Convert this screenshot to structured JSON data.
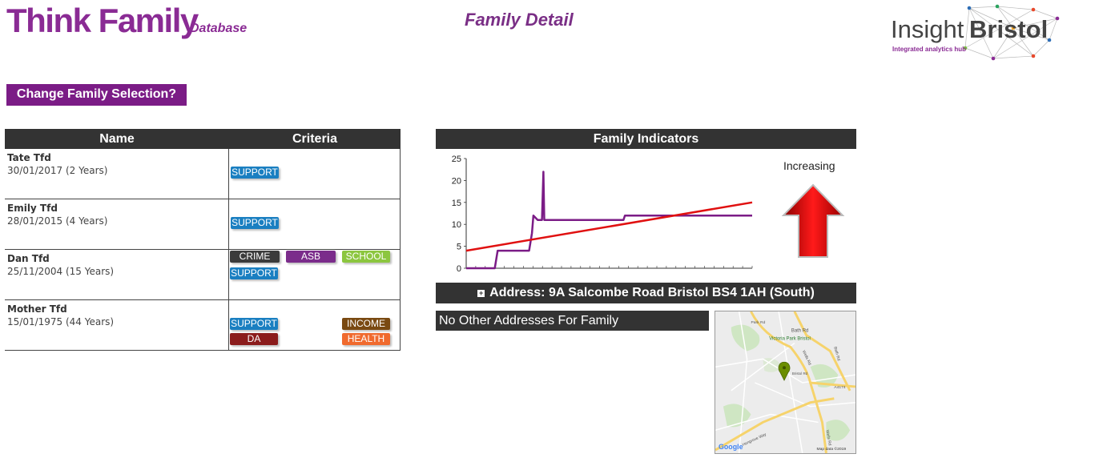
{
  "header": {
    "logo_main": "Think Family",
    "logo_sub": "Database",
    "page_title": "Family Detail",
    "partner_logo": {
      "word1": "Insight",
      "word2": "Bristol",
      "tagline": "Integrated analytics hub"
    }
  },
  "change_button": "Change Family Selection?",
  "people_table": {
    "headers": {
      "name": "Name",
      "criteria": "Criteria"
    },
    "rows": [
      {
        "name": "Tate Tfd",
        "dob": "30/01/2017 (2 Years)",
        "tags": [
          {
            "label": "SUPPORT",
            "color": "#1a7fc1"
          }
        ]
      },
      {
        "name": "Emily Tfd",
        "dob": "28/01/2015 (4 Years)",
        "tags": [
          {
            "label": "SUPPORT",
            "color": "#1a7fc1"
          }
        ]
      },
      {
        "name": "Dan Tfd",
        "dob": "25/11/2004 (15 Years)",
        "tags": [
          {
            "label": "CRIME",
            "color": "#3b3b3b"
          },
          {
            "label": "ASB",
            "color": "#7b2c8b"
          },
          {
            "label": "SCHOOL",
            "color": "#8cc63f"
          },
          {
            "label": "SUPPORT",
            "color": "#1a7fc1"
          }
        ]
      },
      {
        "name": "Mother Tfd",
        "dob": "15/01/1975 (44 Years)",
        "tags": [
          {
            "label": "SUPPORT",
            "color": "#1a7fc1"
          },
          {
            "label": "INCOME",
            "color": "#7a4a12"
          },
          {
            "label": "DA",
            "color": "#8b1c1c"
          },
          {
            "label": "HEALTH",
            "color": "#f06a2e"
          }
        ]
      }
    ]
  },
  "family_indicators": {
    "title": "Family Indicators",
    "trend_label": "Increasing",
    "trend_arrow_color": "#d40000"
  },
  "chart_data": {
    "type": "line",
    "ylim": [
      0,
      25
    ],
    "yticks": [
      0,
      5,
      10,
      15,
      20,
      25
    ],
    "grid": false,
    "series": [
      {
        "color": "#7b1c86",
        "x": [
          0,
          10,
          11,
          22,
          23,
          23.5,
          25,
          25.3,
          26.5,
          27,
          27.3,
          28,
          55,
          55.5,
          100
        ],
        "y": [
          0,
          0,
          4,
          4,
          8,
          12,
          11,
          11,
          11,
          22,
          11,
          11,
          11,
          12,
          12
        ]
      },
      {
        "color": "#e01010",
        "x": [
          0,
          100
        ],
        "y": [
          4,
          15
        ]
      }
    ],
    "xlim": [
      0,
      100
    ]
  },
  "address": {
    "label": "Address: 9A Salcombe Road Bristol BS4 1AH  (South)",
    "expand_icon": "plus-box-icon"
  },
  "other_addresses": "No Other Addresses For Family",
  "map": {
    "labels": [
      "Victoria Park Bristol",
      "Bath Rd",
      "Wells Rd",
      "Park Rd",
      "Bath Rd",
      "A4174",
      "Bristol Rd",
      "Wells Rd",
      "Hengrove Way"
    ],
    "google": "Google",
    "attribution": "Map data ©2019"
  }
}
